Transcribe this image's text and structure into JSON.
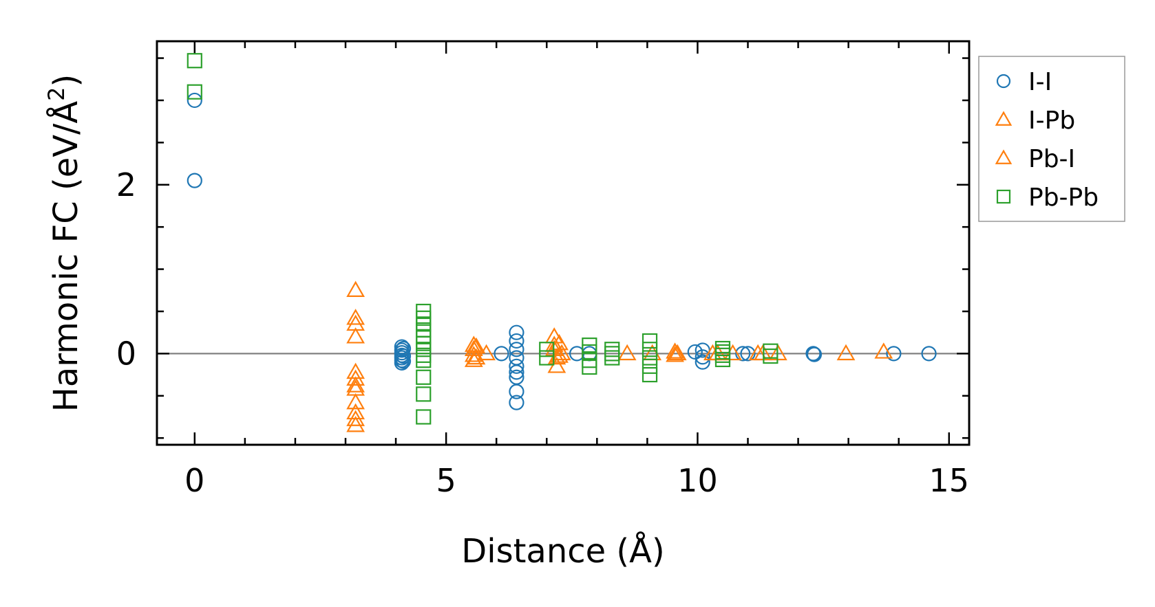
{
  "chart_data": {
    "type": "scatter",
    "title": "",
    "xlabel": "Distance (Å)",
    "ylabel": {
      "main": "Harmonic FC (eV/Å",
      "sup": "2",
      "close": ")"
    },
    "xlim": [
      -0.75,
      15.4
    ],
    "ylim": [
      -1.08,
      3.7
    ],
    "xticks": [
      0,
      5,
      10,
      15
    ],
    "yticks": [
      0,
      2
    ],
    "x_minor_step": 1,
    "y_minor_step": 0.5,
    "zero_line": true,
    "legend_position": "outside-right-top",
    "series": [
      {
        "name": "I-I",
        "marker": "circle",
        "color": "#1f77b4",
        "points": [
          [
            0,
            3.0
          ],
          [
            0,
            2.05
          ],
          [
            4.12,
            0.08
          ],
          [
            4.12,
            0.04
          ],
          [
            4.12,
            0.01
          ],
          [
            4.12,
            -0.02
          ],
          [
            4.12,
            -0.05
          ],
          [
            4.12,
            -0.08
          ],
          [
            4.12,
            -0.11
          ],
          [
            4.15,
            0.06
          ],
          [
            4.15,
            -0.03
          ],
          [
            4.15,
            -0.09
          ],
          [
            6.1,
            0.0
          ],
          [
            6.4,
            0.25
          ],
          [
            6.4,
            0.15
          ],
          [
            6.4,
            0.05
          ],
          [
            6.4,
            -0.05
          ],
          [
            6.4,
            -0.15
          ],
          [
            6.4,
            -0.22
          ],
          [
            6.4,
            -0.28
          ],
          [
            6.4,
            -0.45
          ],
          [
            6.4,
            -0.58
          ],
          [
            7.6,
            0.0
          ],
          [
            7.85,
            0.0
          ],
          [
            9.95,
            0.02
          ],
          [
            10.1,
            0.04
          ],
          [
            10.1,
            -0.04
          ],
          [
            10.1,
            -0.1
          ],
          [
            10.9,
            0.0
          ],
          [
            11.0,
            0.0
          ],
          [
            12.3,
            0.0
          ],
          [
            12.32,
            -0.01
          ],
          [
            13.9,
            0.0
          ],
          [
            14.6,
            0.0
          ]
        ]
      },
      {
        "name": "I-Pb",
        "marker": "triangle",
        "color": "#ff7f0e",
        "points": [
          [
            3.2,
            0.75
          ],
          [
            3.2,
            0.42
          ],
          [
            3.2,
            0.35
          ],
          [
            3.2,
            0.2
          ],
          [
            3.2,
            -0.22
          ],
          [
            3.2,
            -0.3
          ],
          [
            3.2,
            -0.38
          ],
          [
            3.2,
            -0.42
          ],
          [
            3.2,
            -0.58
          ],
          [
            3.2,
            -0.7
          ],
          [
            3.2,
            -0.78
          ],
          [
            3.2,
            -0.85
          ],
          [
            5.55,
            0.1
          ],
          [
            5.55,
            0.05
          ],
          [
            5.55,
            -0.02
          ],
          [
            5.55,
            -0.08
          ],
          [
            5.8,
            0.0
          ],
          [
            7.15,
            0.2
          ],
          [
            7.15,
            0.1
          ],
          [
            7.15,
            0.05
          ],
          [
            7.2,
            -0.05
          ],
          [
            7.2,
            -0.15
          ],
          [
            7.3,
            0.0
          ],
          [
            8.6,
            0.0
          ],
          [
            9.1,
            0.0
          ],
          [
            9.55,
            0.02
          ],
          [
            9.55,
            -0.02
          ],
          [
            10.3,
            0.0
          ],
          [
            10.7,
            0.0
          ],
          [
            11.2,
            0.0
          ],
          [
            11.6,
            0.0
          ],
          [
            12.95,
            0.0
          ],
          [
            13.7,
            0.02
          ]
        ]
      },
      {
        "name": "Pb-I",
        "marker": "triangle",
        "color": "#ff7f0e",
        "points": [
          [
            5.6,
            0.08
          ],
          [
            5.6,
            -0.05
          ],
          [
            7.25,
            0.12
          ],
          [
            7.25,
            -0.03
          ],
          [
            9.6,
            0.0
          ],
          [
            10.4,
            0.0
          ],
          [
            11.3,
            0.0
          ]
        ]
      },
      {
        "name": "Pb-Pb",
        "marker": "square",
        "color": "#2ca02c",
        "points": [
          [
            0,
            3.47
          ],
          [
            0,
            3.1
          ],
          [
            4.55,
            0.5
          ],
          [
            4.55,
            0.42
          ],
          [
            4.55,
            0.35
          ],
          [
            4.55,
            0.28
          ],
          [
            4.55,
            0.2
          ],
          [
            4.55,
            0.12
          ],
          [
            4.55,
            0.05
          ],
          [
            4.55,
            -0.02
          ],
          [
            4.55,
            -0.08
          ],
          [
            4.55,
            -0.28
          ],
          [
            4.55,
            -0.48
          ],
          [
            4.55,
            -0.75
          ],
          [
            7.0,
            0.05
          ],
          [
            7.0,
            -0.05
          ],
          [
            7.85,
            0.1
          ],
          [
            7.85,
            0.02
          ],
          [
            7.85,
            -0.08
          ],
          [
            7.85,
            -0.16
          ],
          [
            8.3,
            0.05
          ],
          [
            8.3,
            0.0
          ],
          [
            8.3,
            -0.05
          ],
          [
            9.05,
            0.15
          ],
          [
            9.05,
            0.05
          ],
          [
            9.05,
            -0.05
          ],
          [
            9.05,
            -0.15
          ],
          [
            9.05,
            -0.25
          ],
          [
            10.5,
            0.06
          ],
          [
            10.5,
            0.02
          ],
          [
            10.5,
            -0.02
          ],
          [
            10.5,
            -0.07
          ],
          [
            11.45,
            0.03
          ],
          [
            11.45,
            -0.03
          ]
        ]
      }
    ]
  }
}
